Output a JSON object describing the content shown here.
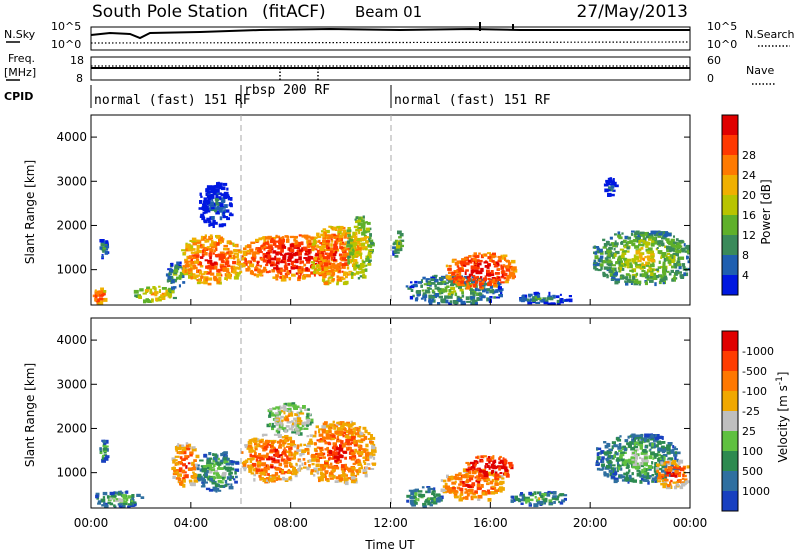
{
  "header": {
    "station": "South Pole Station",
    "mode": "(fitACF)",
    "beam": "Beam 01",
    "date": "27/May/2013"
  },
  "top_panels": {
    "nsky_label": "N.Sky",
    "nsearch_label": "N.Search",
    "noise_scale_top_left": "10^5",
    "noise_scale_bottom_left": "10^0",
    "noise_scale_top_right": "10^5",
    "noise_scale_bottom_right": "10^0",
    "freq_label_line1": "Freq.",
    "freq_label_line2": "[MHz]",
    "freq_ticks": [
      "18",
      "8"
    ],
    "nave_label": "Nave",
    "nave_ticks": [
      "60",
      "0"
    ],
    "cpid_label": "CPID",
    "cpid_segments": [
      {
        "label": "normal (fast) 151 RF",
        "start_hour": 0,
        "end_hour": 6
      },
      {
        "label": "rbsp 200 RF",
        "start_hour": 6,
        "end_hour": 12
      },
      {
        "label": "normal (fast) 151 RF",
        "start_hour": 12,
        "end_hour": 24
      }
    ]
  },
  "x_axis": {
    "label": "Time UT",
    "ticks": [
      "00:00",
      "04:00",
      "08:00",
      "12:00",
      "16:00",
      "20:00",
      "00:00"
    ],
    "range_hours": [
      0,
      24
    ]
  },
  "chart_data": [
    {
      "type": "heatmap",
      "panel": "power",
      "ylabel": "Slant Range [km]",
      "y_ticks": [
        "1000",
        "2000",
        "3000",
        "4000"
      ],
      "ylim": [
        200,
        4500
      ],
      "colorbar": {
        "label": "Power [dB]",
        "ticks": [
          "4",
          "8",
          "12",
          "16",
          "20",
          "24",
          "28"
        ],
        "colors": [
          "#0018e0",
          "#1f5fb0",
          "#3a8a5a",
          "#5fb02a",
          "#b8c400",
          "#f0b000",
          "#ff7a00",
          "#ff3800",
          "#e00000"
        ]
      },
      "echo_regions": [
        {
          "t": [
            0.0,
            0.6
          ],
          "r": [
            250,
            600
          ],
          "level": 6
        },
        {
          "t": [
            0.3,
            0.6
          ],
          "r": [
            1300,
            1750
          ],
          "level": 1
        },
        {
          "t": [
            1.7,
            3.4
          ],
          "r": [
            300,
            650
          ],
          "level": 4
        },
        {
          "t": [
            3.0,
            3.7
          ],
          "r": [
            600,
            1200
          ],
          "level": 2
        },
        {
          "t": [
            3.6,
            6.0
          ],
          "r": [
            700,
            1800
          ],
          "level": 6
        },
        {
          "t": [
            4.3,
            5.6
          ],
          "r": [
            2000,
            3000
          ],
          "level": 0
        },
        {
          "t": [
            6.0,
            9.8
          ],
          "r": [
            800,
            1800
          ],
          "level": 7
        },
        {
          "t": [
            8.8,
            10.6
          ],
          "r": [
            700,
            2000
          ],
          "level": 6
        },
        {
          "t": [
            10.2,
            11.2
          ],
          "r": [
            800,
            2250
          ],
          "level": 4
        },
        {
          "t": [
            12.0,
            12.5
          ],
          "r": [
            1300,
            1900
          ],
          "level": 2
        },
        {
          "t": [
            12.6,
            16.4
          ],
          "r": [
            250,
            900
          ],
          "level": 2
        },
        {
          "t": [
            14.2,
            17.0
          ],
          "r": [
            600,
            1400
          ],
          "level": 7
        },
        {
          "t": [
            17.0,
            19.2
          ],
          "r": [
            250,
            500
          ],
          "level": 1
        },
        {
          "t": [
            20.1,
            24.0
          ],
          "r": [
            700,
            1900
          ],
          "level": 3
        },
        {
          "t": [
            20.5,
            21.0
          ],
          "r": [
            2700,
            3100
          ],
          "level": 0
        }
      ]
    },
    {
      "type": "heatmap",
      "panel": "velocity",
      "ylabel": "Slant Range [km]",
      "y_ticks": [
        "1000",
        "2000",
        "3000",
        "4000"
      ],
      "ylim": [
        200,
        4500
      ],
      "colorbar": {
        "label": "Velocity [m s^-1]",
        "ticks": [
          "1000",
          "500",
          "100",
          "25",
          "-25",
          "-100",
          "-500",
          "-1000"
        ],
        "colors": [
          "#1840c0",
          "#2f6fa0",
          "#2d8a50",
          "#5fc040",
          "#bfbfbf",
          "#f0a800",
          "#ff7800",
          "#ff3c00",
          "#e00000"
        ]
      },
      "echo_regions": [
        {
          "t": [
            0.0,
            2.0
          ],
          "r": [
            250,
            600
          ],
          "level": 2
        },
        {
          "t": [
            0.3,
            0.6
          ],
          "r": [
            1300,
            1750
          ],
          "level": 2
        },
        {
          "t": [
            3.2,
            4.2
          ],
          "r": [
            700,
            1700
          ],
          "level": 6
        },
        {
          "t": [
            4.2,
            5.8
          ],
          "r": [
            600,
            1500
          ],
          "level": 2
        },
        {
          "t": [
            6.0,
            8.5
          ],
          "r": [
            800,
            1900
          ],
          "level": 6
        },
        {
          "t": [
            7.0,
            8.8
          ],
          "r": [
            1900,
            2600
          ],
          "level": 4
        },
        {
          "t": [
            8.5,
            11.3
          ],
          "r": [
            800,
            2200
          ],
          "level": 6
        },
        {
          "t": [
            12.6,
            14.0
          ],
          "r": [
            250,
            700
          ],
          "level": 2
        },
        {
          "t": [
            14.0,
            16.5
          ],
          "r": [
            400,
            1100
          ],
          "level": 6
        },
        {
          "t": [
            15.0,
            16.8
          ],
          "r": [
            900,
            1400
          ],
          "level": 8
        },
        {
          "t": [
            16.8,
            19.0
          ],
          "r": [
            300,
            600
          ],
          "level": 2
        },
        {
          "t": [
            20.2,
            23.5
          ],
          "r": [
            800,
            1900
          ],
          "level": 2
        },
        {
          "t": [
            22.5,
            24.0
          ],
          "r": [
            700,
            1300
          ],
          "level": 6
        }
      ]
    }
  ]
}
